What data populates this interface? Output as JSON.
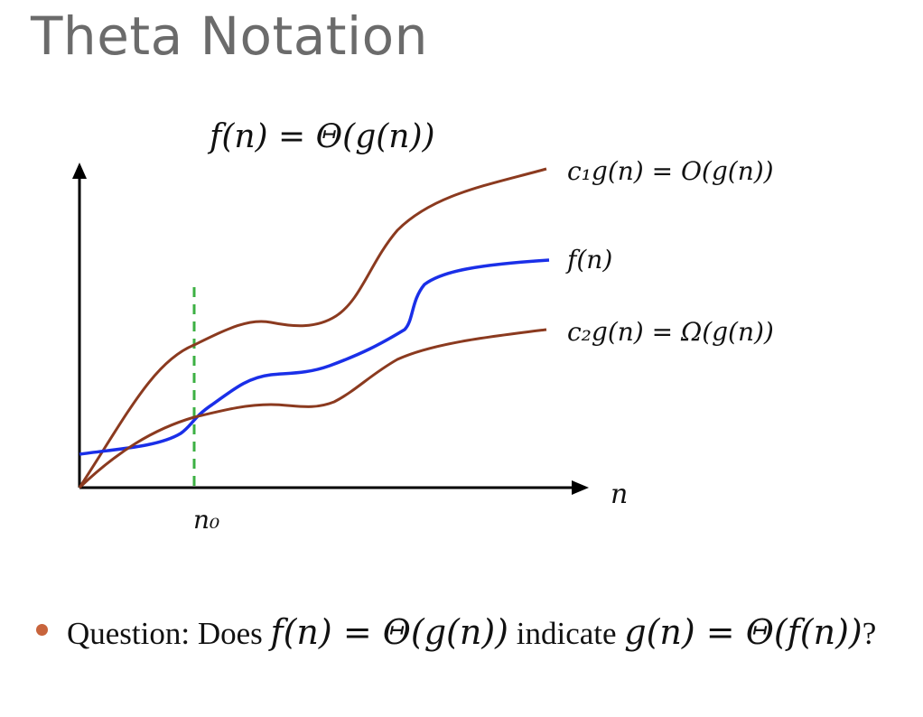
{
  "slide": {
    "title": "Theta Notation"
  },
  "diagram": {
    "formula": "f(n) = Θ(g(n))",
    "x_axis_label": "n",
    "threshold_label": "n₀",
    "upper_curve_label": "c₁g(n) = O(g(n))",
    "function_label": "f(n)",
    "lower_curve_label": "c₂g(n) = Ω(g(n))",
    "colors": {
      "bound_curves": "#8b3a1f",
      "function_curve": "#1a2fe8",
      "threshold_line": "#3cb043",
      "axes": "#000000"
    }
  },
  "question": {
    "prefix": "Question: Does ",
    "math1": "f(n) = Θ(g(n))",
    "middle": " indicate ",
    "math2": "g(n) = Θ(f(n))",
    "suffix": "?"
  }
}
